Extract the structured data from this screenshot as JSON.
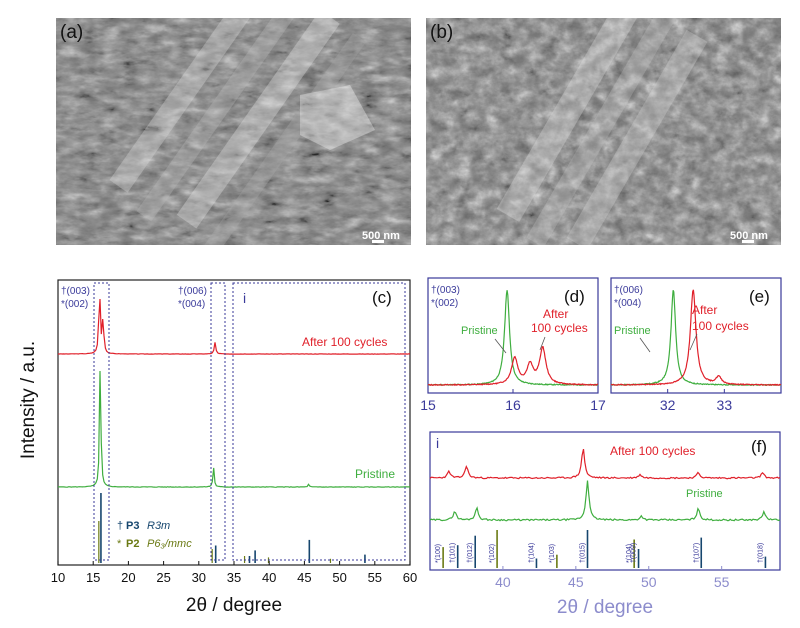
{
  "panels": {
    "a": {
      "label": "(a)",
      "scale_bar": "500 nm"
    },
    "b": {
      "label": "(b)",
      "scale_bar": "500 nm"
    },
    "c": {
      "label": "(c)",
      "inset_marker": "i"
    },
    "d": {
      "label": "(d)"
    },
    "e": {
      "label": "(e)"
    },
    "f": {
      "label": "(f)",
      "inset_marker": "i"
    }
  },
  "colors": {
    "pristine": "#3fae3f",
    "after": "#e0202a",
    "p3_ref": "#16466e",
    "p2_ref": "#6b7a14",
    "axis_blue": "#3a3a9a",
    "xlabel_f": "#8c8ccc"
  },
  "chart_data": [
    {
      "panel": "c",
      "type": "line",
      "xlabel": "2θ / degree",
      "ylabel": "Intensity / a.u.",
      "xlim": [
        10,
        60
      ],
      "xticks": [
        10,
        15,
        20,
        25,
        30,
        35,
        40,
        45,
        50,
        55,
        60
      ],
      "series": [
        {
          "name": "After 100 cycles",
          "peaks": [
            [
              15.9,
              1.0
            ],
            [
              16.4,
              0.55
            ],
            [
              32.3,
              0.18
            ]
          ]
        },
        {
          "name": "Pristine",
          "peaks": [
            [
              16.0,
              1.0
            ],
            [
              32.1,
              0.15
            ],
            [
              45.6,
              0.02
            ]
          ]
        }
      ],
      "reference_lines": {
        "P3": [
          [
            16.1,
            1.0
          ],
          [
            32.4,
            0.25
          ],
          [
            37.2,
            0.1
          ],
          [
            38.0,
            0.18
          ],
          [
            45.7,
            0.33
          ],
          [
            53.6,
            0.12
          ]
        ],
        "P2": [
          [
            15.8,
            0.6
          ],
          [
            31.9,
            0.2
          ],
          [
            36.5,
            0.1
          ],
          [
            39.9,
            0.08
          ],
          [
            48.7,
            0.06
          ]
        ]
      },
      "peak_labels": {
        "p3_003": "†(003)",
        "p2_002": "*(002)",
        "p3_006": "†(006)",
        "p2_004": "*(004)"
      },
      "legend": [
        {
          "symbol": "†",
          "phase": "P3",
          "group": "R3m"
        },
        {
          "symbol": "*",
          "phase": "P2",
          "group": "P6₃/mmc"
        }
      ]
    },
    {
      "panel": "d",
      "type": "line",
      "xlim": [
        15,
        17
      ],
      "xticks": [
        15,
        16,
        17
      ],
      "series": [
        {
          "name": "Pristine",
          "label": "Pristine",
          "peaks": [
            [
              15.93,
              1.0
            ]
          ]
        },
        {
          "name": "After 100 cycles",
          "label_line1": "After",
          "label_line2": "100 cycles",
          "peaks": [
            [
              16.02,
              0.28
            ],
            [
              16.35,
              0.38
            ],
            [
              16.2,
              0.2
            ]
          ]
        }
      ],
      "peak_labels": [
        "†(003)",
        "*(002)"
      ]
    },
    {
      "panel": "e",
      "type": "line",
      "xlim": [
        31,
        34
      ],
      "xticks": [
        32,
        33
      ],
      "series": [
        {
          "name": "Pristine",
          "label": "Pristine",
          "peaks": [
            [
              32.1,
              1.0
            ]
          ]
        },
        {
          "name": "After 100 cycles",
          "label_line1": "After",
          "label_line2": "100 cycles",
          "peaks": [
            [
              32.45,
              1.0
            ],
            [
              32.9,
              0.08
            ]
          ]
        }
      ],
      "peak_labels": [
        "†(006)",
        "*(004)"
      ]
    },
    {
      "panel": "f",
      "type": "line",
      "xlabel": "2θ / degree",
      "xlim": [
        35,
        59
      ],
      "xticks": [
        40,
        45,
        50,
        55
      ],
      "series": [
        {
          "name": "After 100 cycles",
          "label": "After 100 cycles",
          "peaks": [
            [
              36.3,
              0.22
            ],
            [
              37.5,
              0.4
            ],
            [
              45.5,
              1.0
            ],
            [
              49.4,
              0.12
            ],
            [
              53.4,
              0.18
            ],
            [
              57.8,
              0.18
            ]
          ]
        },
        {
          "name": "Pristine",
          "label": "Pristine",
          "peaks": [
            [
              36.7,
              0.22
            ],
            [
              38.2,
              0.3
            ],
            [
              45.8,
              1.0
            ],
            [
              49.5,
              0.1
            ],
            [
              53.4,
              0.28
            ],
            [
              57.9,
              0.2
            ]
          ]
        }
      ],
      "reference_lines": [
        {
          "x": 35.9,
          "h": 0.55,
          "phase": "P2",
          "label": "*(100)"
        },
        {
          "x": 36.9,
          "h": 0.6,
          "phase": "P3",
          "label": "†(101)"
        },
        {
          "x": 38.1,
          "h": 0.85,
          "phase": "P3",
          "label": "†(012)"
        },
        {
          "x": 39.6,
          "h": 1.0,
          "phase": "P2",
          "label": "*(102)"
        },
        {
          "x": 42.3,
          "h": 0.25,
          "phase": "P3",
          "label": "†(104)"
        },
        {
          "x": 43.7,
          "h": 0.35,
          "phase": "P2",
          "label": "*(103)"
        },
        {
          "x": 45.8,
          "h": 1.0,
          "phase": "P3",
          "label": "†(015)"
        },
        {
          "x": 49.0,
          "h": 0.75,
          "phase": "P2",
          "label": "*(104)"
        },
        {
          "x": 49.3,
          "h": 0.5,
          "phase": "P3",
          "label": "†(009)"
        },
        {
          "x": 53.6,
          "h": 0.8,
          "phase": "P3",
          "label": "†(107)"
        },
        {
          "x": 58.0,
          "h": 0.3,
          "phase": "P3",
          "label": "†(018)"
        }
      ]
    }
  ]
}
